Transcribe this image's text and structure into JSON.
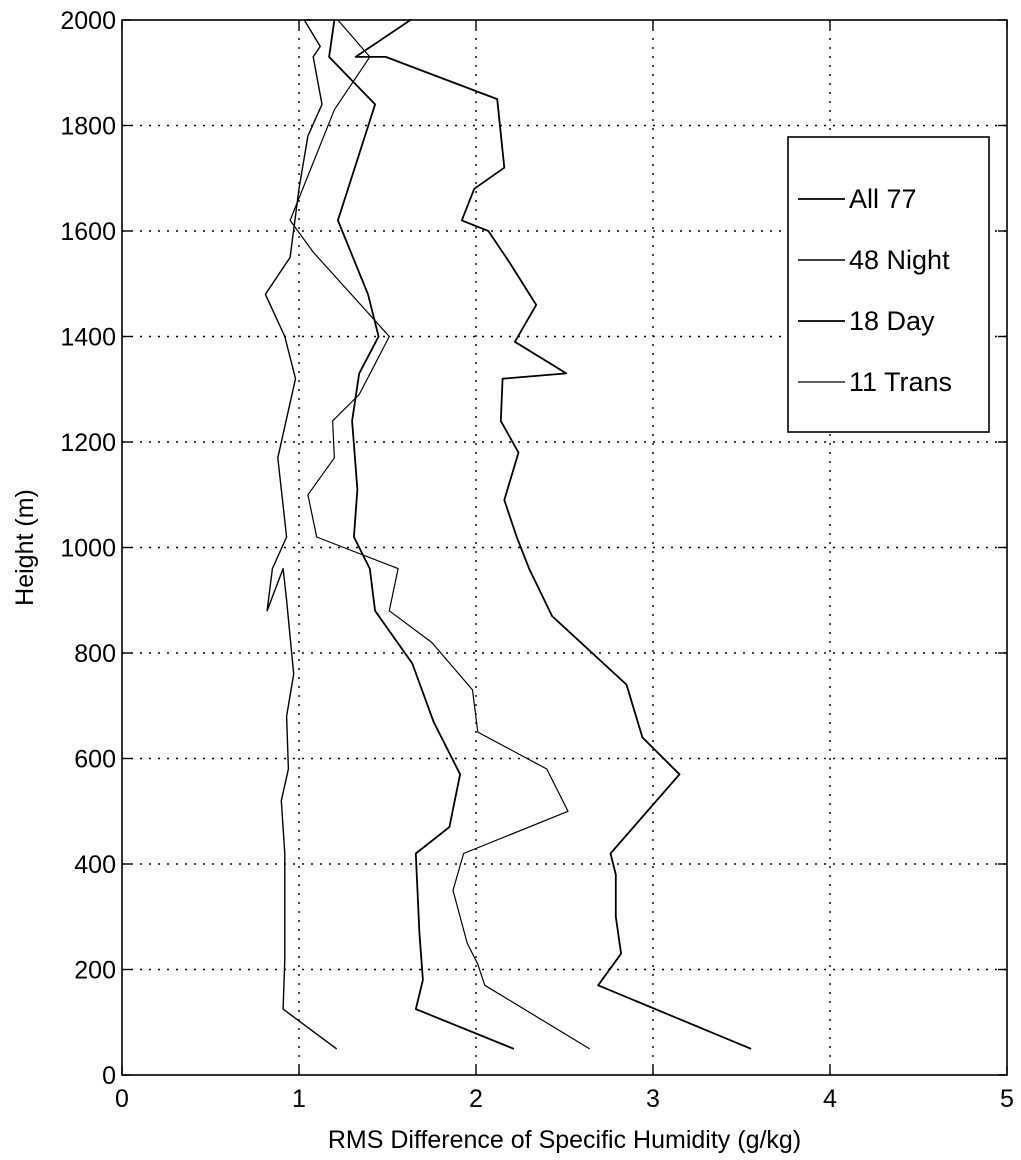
{
  "chart_data": {
    "type": "line",
    "title": "",
    "xlabel": "RMS Difference of Specific Humidity (g/kg)",
    "ylabel": "Height (m)",
    "xlim": [
      0,
      5
    ],
    "ylim": [
      0,
      2000
    ],
    "x_ticks": [
      "0",
      "1",
      "2",
      "3",
      "4",
      "5"
    ],
    "y_ticks": [
      "0",
      "200",
      "400",
      "600",
      "800",
      "1000",
      "1200",
      "1400",
      "1600",
      "1800",
      "2000"
    ],
    "grid": true,
    "legend_position": "top-right",
    "series": [
      {
        "name": "All 77",
        "color": "#000000",
        "x": [
          2.21,
          1.66,
          1.7,
          1.68,
          1.66,
          1.85,
          1.91,
          1.76,
          1.64,
          1.43,
          1.4,
          1.31,
          1.33,
          1.3,
          1.34,
          1.45,
          1.39,
          1.22,
          1.43,
          1.17,
          1.2
        ],
        "y": [
          50,
          125,
          180,
          270,
          420,
          470,
          570,
          670,
          780,
          880,
          960,
          1020,
          1110,
          1240,
          1330,
          1400,
          1480,
          1620,
          1840,
          1930,
          2000
        ]
      },
      {
        "name": "48 Night",
        "color": "#000000",
        "x": [
          1.21,
          0.91,
          0.92,
          0.92,
          0.9,
          0.94,
          0.93,
          0.97,
          0.93,
          0.91,
          0.82,
          0.85,
          0.93,
          0.88,
          0.98,
          0.92,
          0.81,
          0.95,
          1.0,
          1.05,
          1.13,
          1.08,
          1.12,
          1.03,
          1.07
        ],
        "y": [
          50,
          125,
          220,
          420,
          520,
          580,
          680,
          760,
          900,
          960,
          880,
          960,
          1020,
          1170,
          1320,
          1400,
          1480,
          1550,
          1680,
          1780,
          1840,
          1930,
          1950,
          2000,
          2000
        ]
      },
      {
        "name": "18 Day",
        "color": "#000000",
        "x": [
          3.55,
          2.69,
          2.82,
          2.79,
          2.79,
          2.76,
          3.15,
          2.94,
          2.85,
          2.43,
          2.3,
          2.23,
          2.16,
          2.24,
          2.14,
          2.15,
          2.51,
          2.22,
          2.34,
          2.19,
          2.07,
          1.92,
          1.99,
          2.16,
          2.12,
          1.49,
          1.32,
          1.63
        ],
        "y": [
          50,
          170,
          230,
          300,
          380,
          420,
          570,
          640,
          740,
          870,
          960,
          1020,
          1090,
          1180,
          1240,
          1320,
          1330,
          1390,
          1460,
          1540,
          1600,
          1620,
          1680,
          1720,
          1850,
          1930,
          1930,
          2000
        ]
      },
      {
        "name": "11 Trans",
        "color": "#000000",
        "x": [
          2.64,
          2.05,
          2.01,
          1.95,
          1.87,
          1.93,
          2.52,
          2.4,
          2.01,
          1.98,
          1.75,
          1.51,
          1.56,
          1.1,
          1.05,
          1.2,
          1.19,
          1.34,
          1.51,
          1.08,
          0.95,
          1.2,
          1.4,
          1.22
        ],
        "y": [
          50,
          170,
          210,
          250,
          350,
          420,
          500,
          580,
          650,
          730,
          820,
          880,
          960,
          1020,
          1100,
          1170,
          1240,
          1290,
          1400,
          1560,
          1620,
          1830,
          1930,
          2000
        ]
      }
    ]
  }
}
